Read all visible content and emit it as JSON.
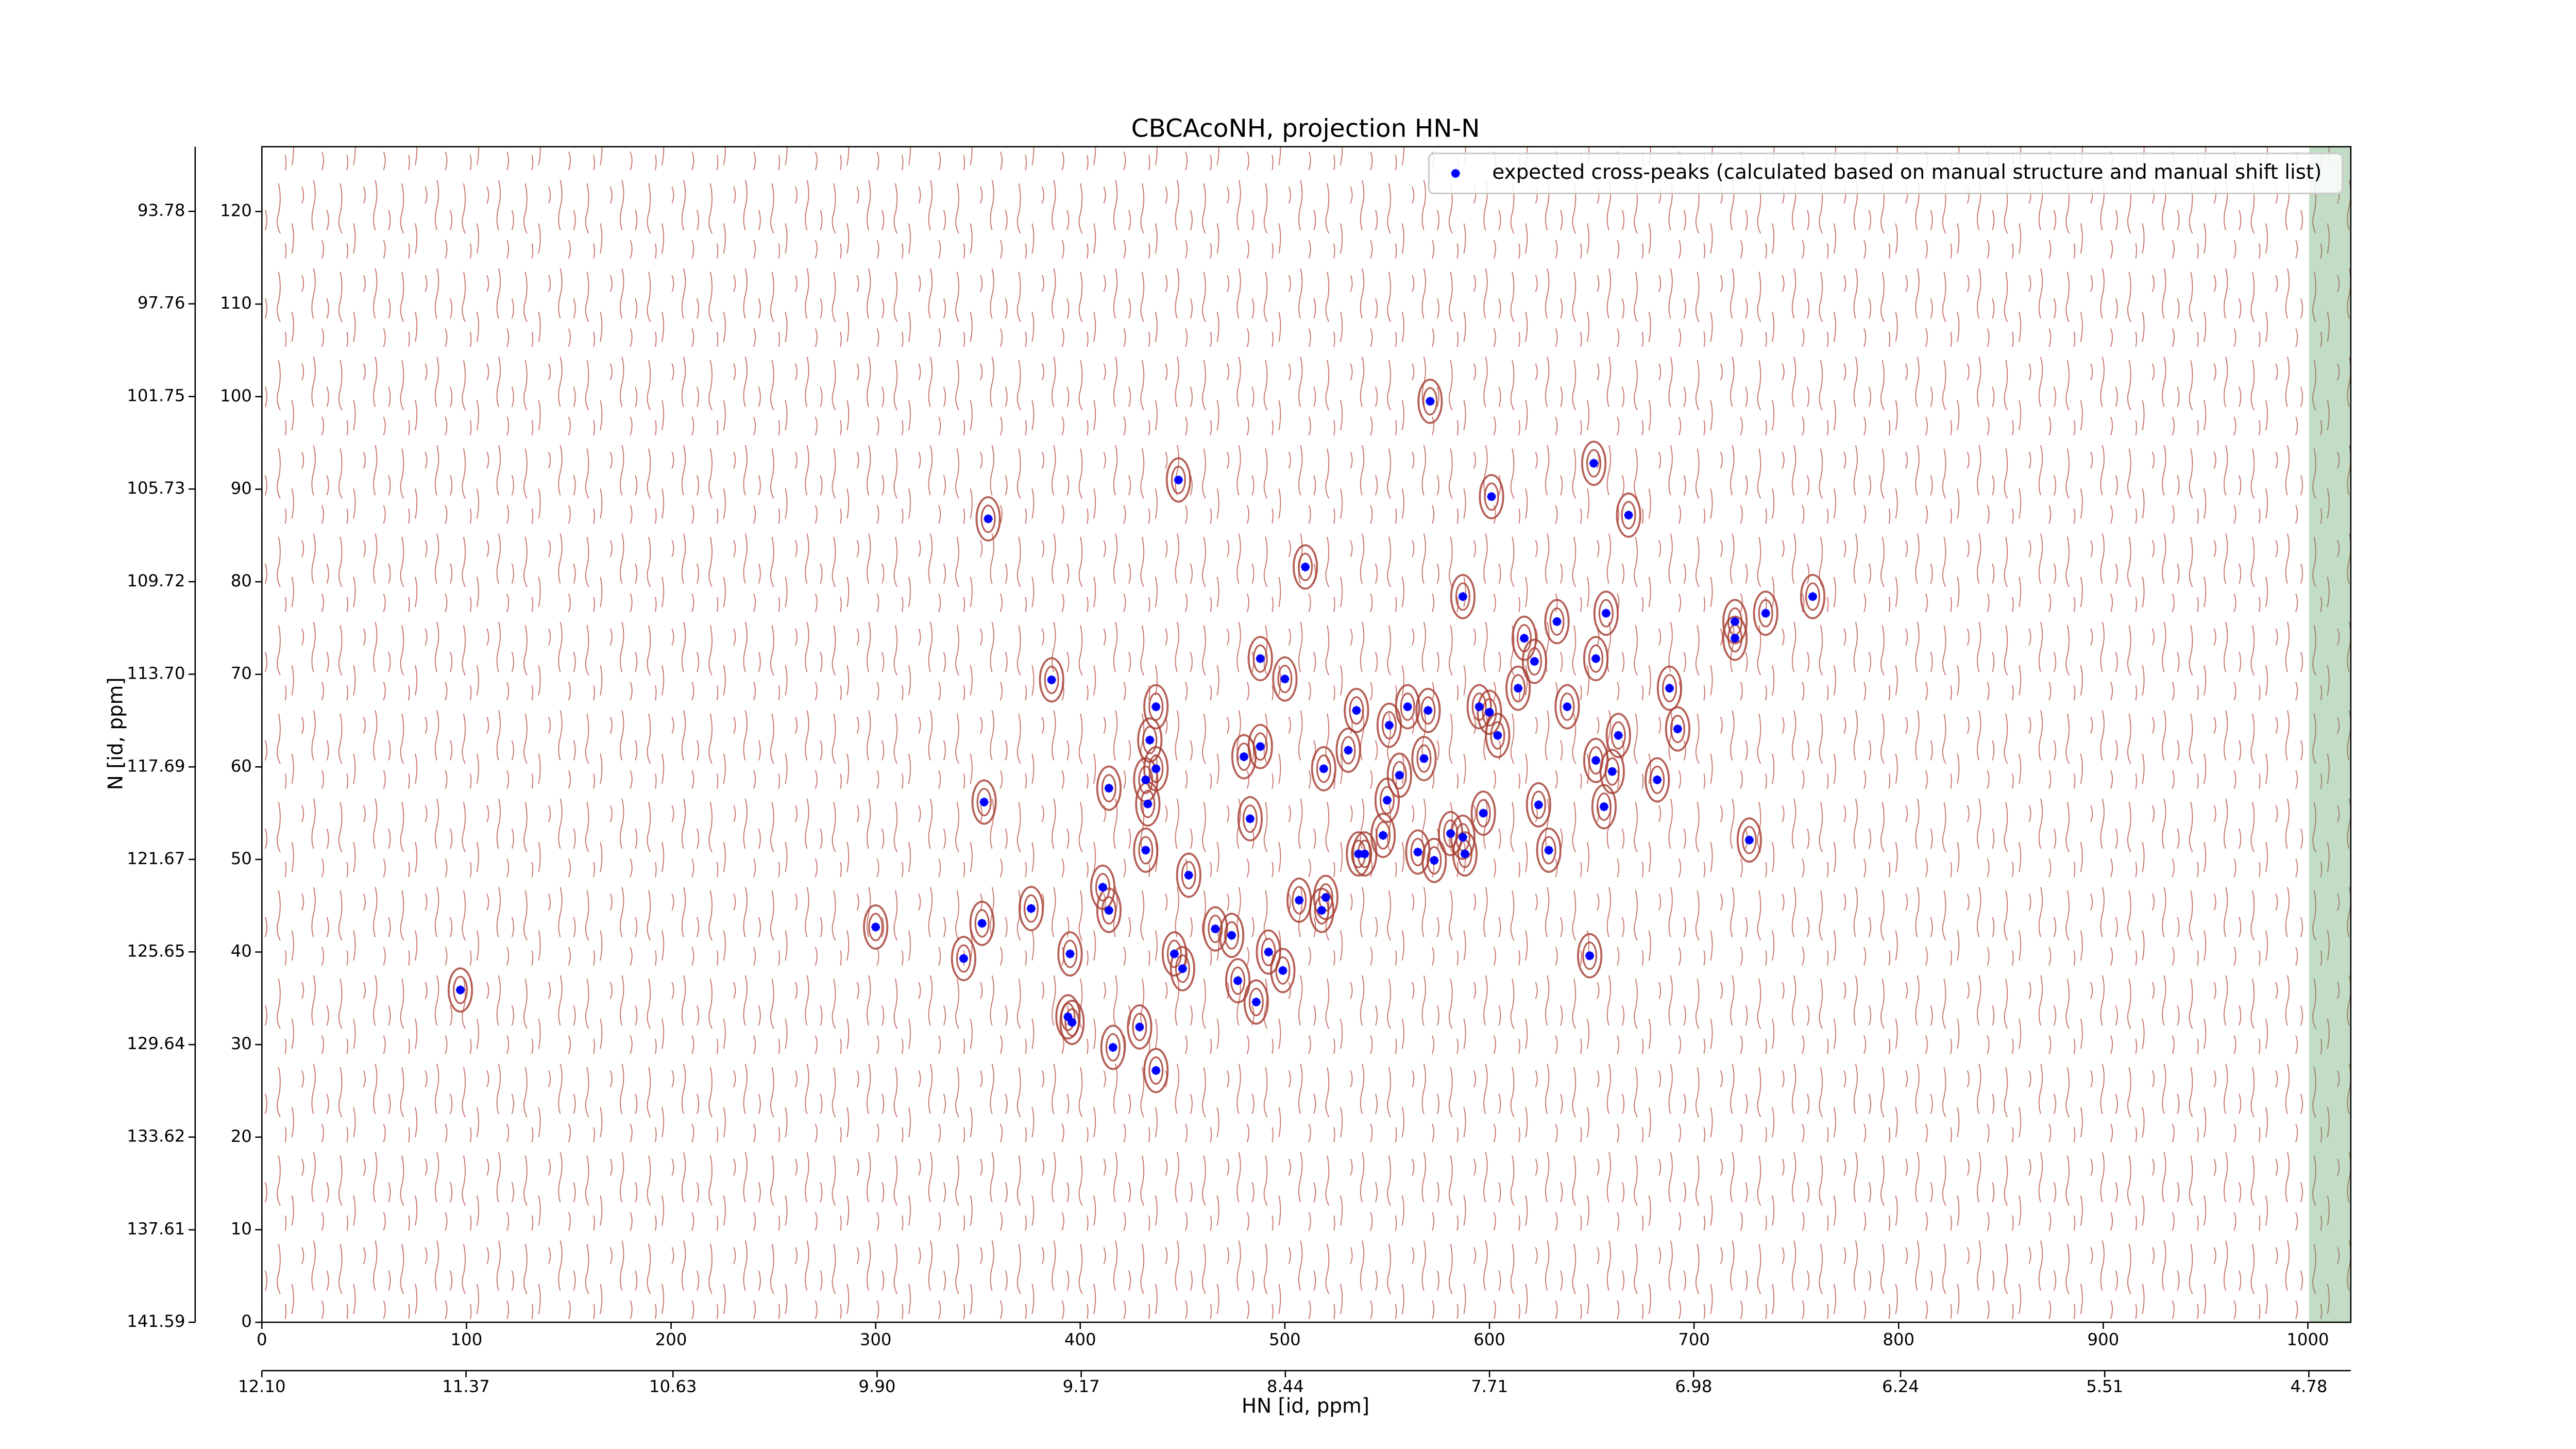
{
  "chart_data": {
    "type": "scatter",
    "title": "CBCAcoNH, projection HN-N",
    "xlabel": "HN [id, ppm]",
    "ylabel": "N [id, ppm]",
    "xlim": [
      0,
      1021
    ],
    "ylim": [
      0,
      127
    ],
    "xticks": [
      0,
      100,
      200,
      300,
      400,
      500,
      600,
      700,
      800,
      900,
      1000
    ],
    "yticks": [
      0,
      10,
      20,
      30,
      40,
      50,
      60,
      70,
      80,
      90,
      100,
      110,
      120
    ],
    "x2lim": [
      12.1,
      4.63
    ],
    "x2ticks": [
      {
        "value": 12.1,
        "label": "12.10"
      },
      11.37,
      10.63,
      {
        "value": 9.9,
        "label": "9.90"
      },
      9.17,
      8.44,
      7.71,
      6.98,
      6.24,
      5.51,
      4.78
    ],
    "y2lim": [
      141.59,
      91.0
    ],
    "y2ticks": [
      141.59,
      137.61,
      133.62,
      129.64,
      125.65,
      121.67,
      117.69,
      {
        "value": 113.7,
        "label": "113.70"
      },
      109.72,
      105.73,
      101.75,
      97.76,
      93.78
    ],
    "grid": false,
    "legend": "upper right",
    "series": [
      {
        "name": "expected cross-peaks (calculated based on manual structure and manual shift list)",
        "color": "#0000ff",
        "x": [
          97,
          300,
          343,
          352,
          355,
          353,
          376,
          386,
          395,
          396,
          394,
          414,
          411,
          414,
          416,
          429,
          437,
          432,
          433,
          432,
          434,
          437,
          437,
          448,
          446,
          450,
          453,
          466,
          474,
          477,
          480,
          483,
          488,
          488,
          486,
          492,
          499,
          500,
          507,
          510,
          519,
          518,
          520,
          531,
          535,
          536,
          539,
          548,
          550,
          551,
          556,
          560,
          565,
          568,
          570,
          571,
          573,
          581,
          587,
          587,
          588,
          595,
          597,
          600,
          601,
          604,
          614,
          617,
          622,
          624,
          629,
          633,
          638,
          649,
          651,
          652,
          652,
          656,
          657,
          660,
          663,
          668,
          682,
          688,
          692,
          720,
          720,
          727,
          735,
          758
        ],
        "values": [
          35.9,
          42.7,
          39.3,
          43.1,
          86.8,
          56.2,
          44.7,
          69.4,
          39.8,
          32.4,
          33.0,
          57.7,
          47.0,
          44.5,
          29.7,
          31.9,
          27.2,
          51.0,
          56.0,
          58.6,
          62.9,
          59.8,
          66.5,
          91.0,
          39.8,
          38.2,
          48.3,
          42.5,
          41.8,
          36.9,
          61.1,
          54.4,
          62.2,
          71.7,
          34.6,
          40.0,
          38.0,
          69.5,
          45.6,
          81.6,
          59.8,
          44.5,
          45.9,
          61.8,
          66.1,
          50.6,
          50.6,
          52.6,
          56.4,
          64.5,
          59.1,
          66.5,
          50.8,
          60.9,
          66.1,
          99.5,
          49.9,
          52.8,
          78.4,
          52.4,
          50.6,
          66.5,
          55.0,
          65.9,
          89.2,
          63.4,
          68.5,
          73.9,
          71.4,
          55.9,
          51.0,
          75.7,
          66.5,
          39.6,
          92.8,
          71.7,
          60.7,
          55.7,
          76.6,
          59.5,
          63.4,
          87.2,
          58.6,
          68.5,
          64.1,
          75.7,
          73.9,
          52.1,
          76.6,
          78.4
        ]
      }
    ]
  }
}
